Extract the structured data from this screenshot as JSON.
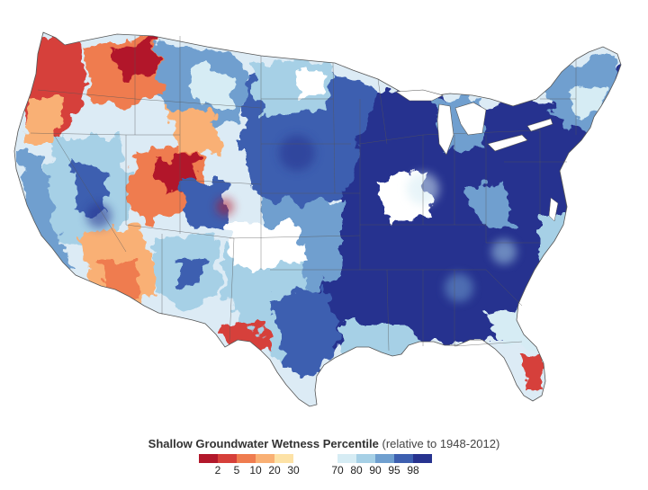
{
  "legend": {
    "title_main": "Shallow Groundwater Wetness Percentile",
    "title_sub": "(relative to 1948-2012)",
    "dry_colors": [
      "#b2182b",
      "#d6403a",
      "#ef7c4f",
      "#f9b074",
      "#fde2a6"
    ],
    "dry_ticks": [
      "2",
      "5",
      "10",
      "20",
      "30"
    ],
    "wet_colors": [
      "#d6ecf4",
      "#a6d0e6",
      "#6f9fcf",
      "#3d5fb0",
      "#27338f"
    ],
    "wet_ticks": [
      "70",
      "80",
      "90",
      "95",
      "98"
    ]
  },
  "map": {
    "background": "#ffffff",
    "border_color": "#555555"
  }
}
